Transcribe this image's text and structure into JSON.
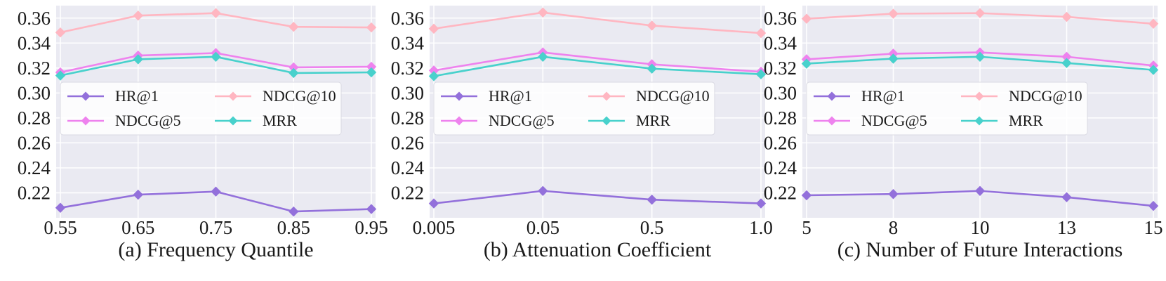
{
  "chart_data": [
    {
      "type": "line",
      "xlabel": "(a) Frequency Quantile",
      "ylabel": "",
      "x": [
        "0.55",
        "0.65",
        "0.75",
        "0.85",
        "0.95"
      ],
      "ylim": [
        0.2,
        0.37
      ],
      "yticks": [
        "0.22",
        "0.24",
        "0.26",
        "0.28",
        "0.30",
        "0.32",
        "0.34",
        "0.36"
      ],
      "grid": true,
      "legend": "middle, 2 columns",
      "series": [
        {
          "name": "HR@1",
          "color": "#9370db",
          "values": [
            0.208,
            0.2185,
            0.221,
            0.205,
            0.207
          ]
        },
        {
          "name": "NDCG@10",
          "color": "#ffb6c1",
          "values": [
            0.3485,
            0.362,
            0.364,
            0.353,
            0.3525
          ]
        },
        {
          "name": "NDCG@5",
          "color": "#ee82ee",
          "values": [
            0.3165,
            0.33,
            0.332,
            0.3205,
            0.321
          ]
        },
        {
          "name": "MRR",
          "color": "#48d1cc",
          "values": [
            0.314,
            0.327,
            0.329,
            0.316,
            0.3165
          ]
        }
      ]
    },
    {
      "type": "line",
      "xlabel": "(b) Attenuation Coefficient",
      "ylabel": "",
      "x": [
        "0.005",
        "0.05",
        "0.5",
        "1.0"
      ],
      "ylim": [
        0.2,
        0.37
      ],
      "yticks": [
        "0.22",
        "0.24",
        "0.26",
        "0.28",
        "0.30",
        "0.32",
        "0.34",
        "0.36"
      ],
      "grid": true,
      "legend": "middle, 2 columns",
      "series": [
        {
          "name": "HR@1",
          "color": "#9370db",
          "values": [
            0.2115,
            0.2215,
            0.2145,
            0.2115
          ]
        },
        {
          "name": "NDCG@10",
          "color": "#ffb6c1",
          "values": [
            0.3515,
            0.3645,
            0.354,
            0.348
          ]
        },
        {
          "name": "NDCG@5",
          "color": "#ee82ee",
          "values": [
            0.318,
            0.3325,
            0.323,
            0.317
          ]
        },
        {
          "name": "MRR",
          "color": "#48d1cc",
          "values": [
            0.3135,
            0.329,
            0.3195,
            0.315
          ]
        }
      ]
    },
    {
      "type": "line",
      "xlabel": "(c) Number of Future Interactions",
      "ylabel": "",
      "x": [
        "5",
        "8",
        "10",
        "13",
        "15"
      ],
      "ylim": [
        0.2,
        0.37
      ],
      "yticks": [
        "0.22",
        "0.24",
        "0.26",
        "0.28",
        "0.30",
        "0.32",
        "0.34",
        "0.36"
      ],
      "grid": true,
      "legend": "middle, 2 columns",
      "series": [
        {
          "name": "HR@1",
          "color": "#9370db",
          "values": [
            0.218,
            0.219,
            0.2215,
            0.2165,
            0.2095
          ]
        },
        {
          "name": "NDCG@10",
          "color": "#ffb6c1",
          "values": [
            0.3595,
            0.3635,
            0.364,
            0.361,
            0.3555
          ]
        },
        {
          "name": "NDCG@5",
          "color": "#ee82ee",
          "values": [
            0.327,
            0.3315,
            0.3325,
            0.329,
            0.322
          ]
        },
        {
          "name": "MRR",
          "color": "#48d1cc",
          "values": [
            0.3235,
            0.3275,
            0.329,
            0.324,
            0.3185
          ]
        }
      ]
    }
  ]
}
